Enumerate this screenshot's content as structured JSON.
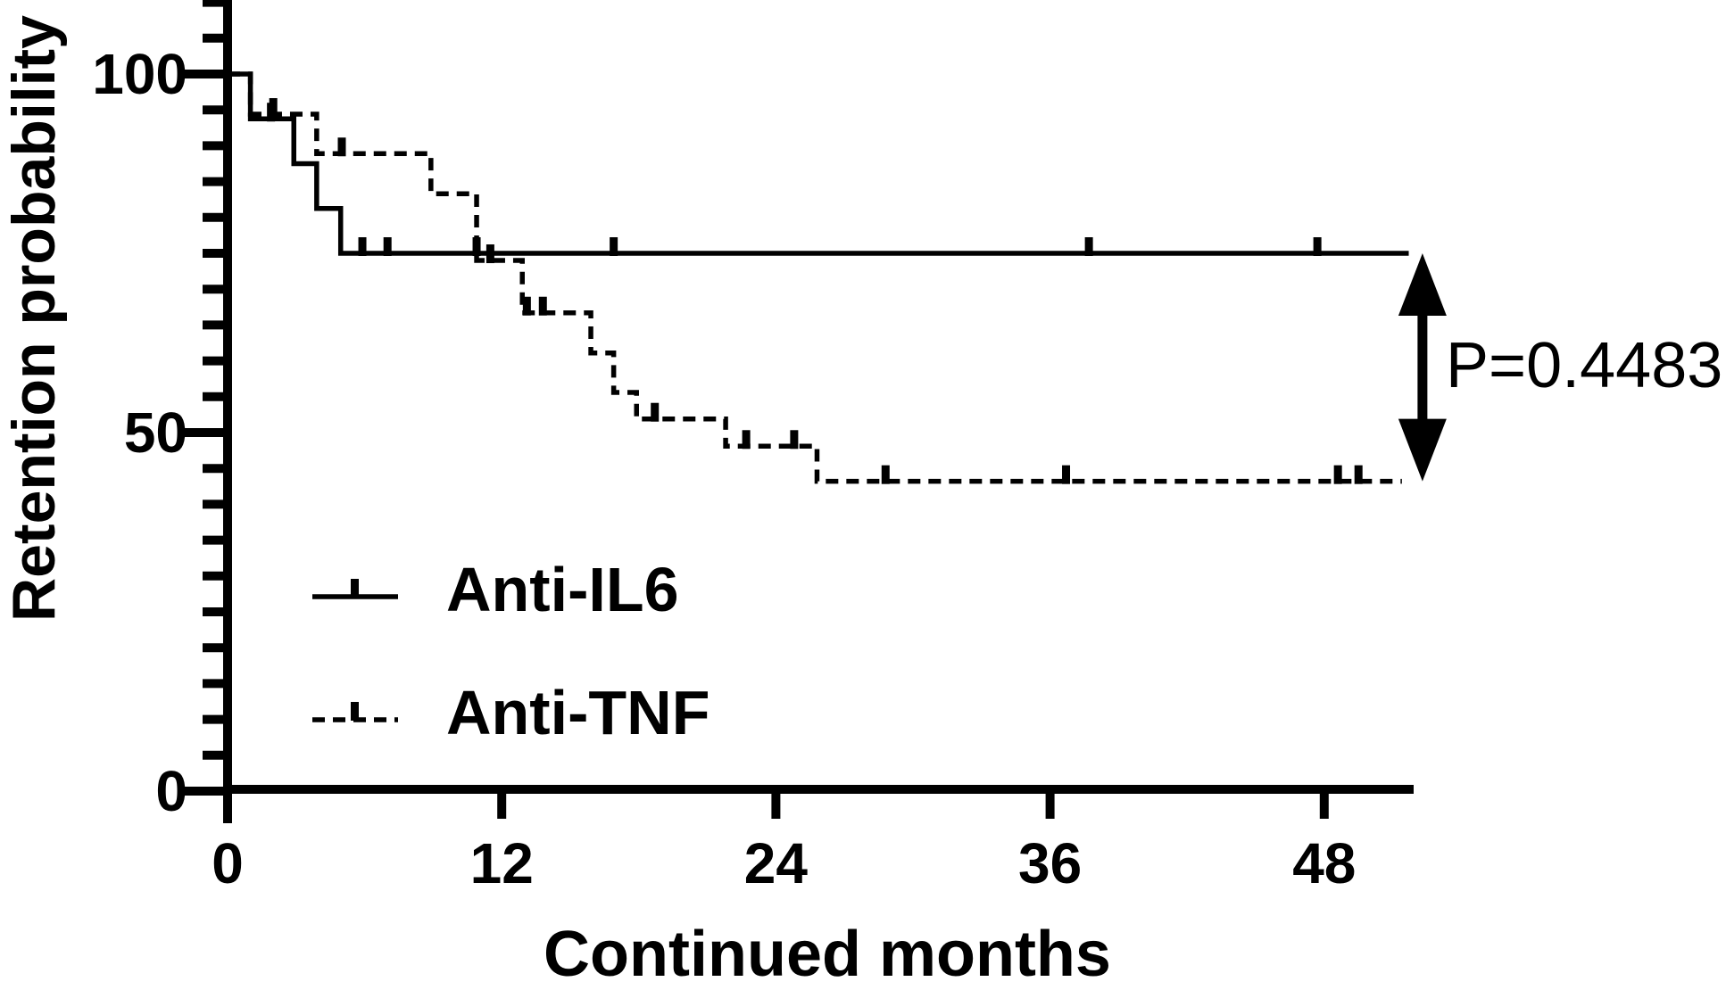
{
  "figure": {
    "background": "#ffffff",
    "foreground": "#000000"
  },
  "y_axis": {
    "title": "Retention probability",
    "ticks": [
      {
        "value": 100,
        "label": "100"
      },
      {
        "value": 50,
        "label": "50"
      },
      {
        "value": 0,
        "label": "0"
      }
    ],
    "minor_tick_step": 5,
    "axis_top_value": 110
  },
  "x_axis": {
    "title": "Continued months",
    "ticks": [
      {
        "value": 0,
        "label": "0"
      },
      {
        "value": 12,
        "label": "12"
      },
      {
        "value": 24,
        "label": "24"
      },
      {
        "value": 36,
        "label": "36"
      },
      {
        "value": 48,
        "label": "48"
      }
    ],
    "max_value": 51.9
  },
  "legend": {
    "items": [
      {
        "label": "Anti-IL6",
        "line_style": "solid"
      },
      {
        "label": "Anti-TNF",
        "line_style": "dashed"
      }
    ]
  },
  "annotation": {
    "text": "P=0.4483"
  },
  "chart_data": {
    "type": "line",
    "subtype": "kaplan-meier-step",
    "title": "",
    "xlabel": "Continued months",
    "ylabel": "Retention probability",
    "xlim": [
      0,
      51.9
    ],
    "ylim": [
      0,
      110
    ],
    "x_ticks": [
      0,
      12,
      24,
      36,
      48
    ],
    "y_ticks": [
      0,
      50,
      100
    ],
    "y_minor_tick_step": 5,
    "grid": false,
    "legend_position": "inside-middle-left",
    "p_value_label": "P=0.4483",
    "p_value_arrow": {
      "x_month": 52.3,
      "from_percent": 75,
      "to_percent": 43.2
    },
    "series": [
      {
        "name": "Anti-IL6",
        "line_style": "solid",
        "color": "#000000",
        "steps_month_percent": [
          [
            0,
            100
          ],
          [
            1,
            100
          ],
          [
            1,
            93.75
          ],
          [
            2.9,
            93.75
          ],
          [
            2.9,
            87.5
          ],
          [
            3.9,
            87.5
          ],
          [
            3.9,
            81.25
          ],
          [
            4.95,
            81.25
          ],
          [
            4.95,
            75
          ],
          [
            51.7,
            75
          ]
        ],
        "censor_marks_months": [
          1.9,
          5.9,
          7.0,
          10.9,
          16.9,
          37.7,
          47.7
        ]
      },
      {
        "name": "Anti-TNF",
        "line_style": "dashed",
        "color": "#000000",
        "steps_month_percent": [
          [
            0,
            100
          ],
          [
            1,
            100
          ],
          [
            1,
            94.4
          ],
          [
            3.9,
            94.4
          ],
          [
            3.9,
            88.9
          ],
          [
            8.9,
            88.9
          ],
          [
            8.9,
            83.3
          ],
          [
            10.9,
            83.3
          ],
          [
            10.9,
            74
          ],
          [
            12.9,
            74
          ],
          [
            12.9,
            66.7
          ],
          [
            15.9,
            66.7
          ],
          [
            15.9,
            61.1
          ],
          [
            16.9,
            61.1
          ],
          [
            16.9,
            55.6
          ],
          [
            17.9,
            55.6
          ],
          [
            17.9,
            51.9
          ],
          [
            21.8,
            51.9
          ],
          [
            21.8,
            48.1
          ],
          [
            25.8,
            48.1
          ],
          [
            25.8,
            43.2
          ],
          [
            51.4,
            43.2
          ]
        ],
        "censor_marks_months": [
          2.0,
          5.0,
          11.5,
          13.1,
          13.8,
          18.7,
          22.7,
          24.8,
          28.8,
          36.7,
          48.6,
          49.5
        ]
      }
    ]
  }
}
